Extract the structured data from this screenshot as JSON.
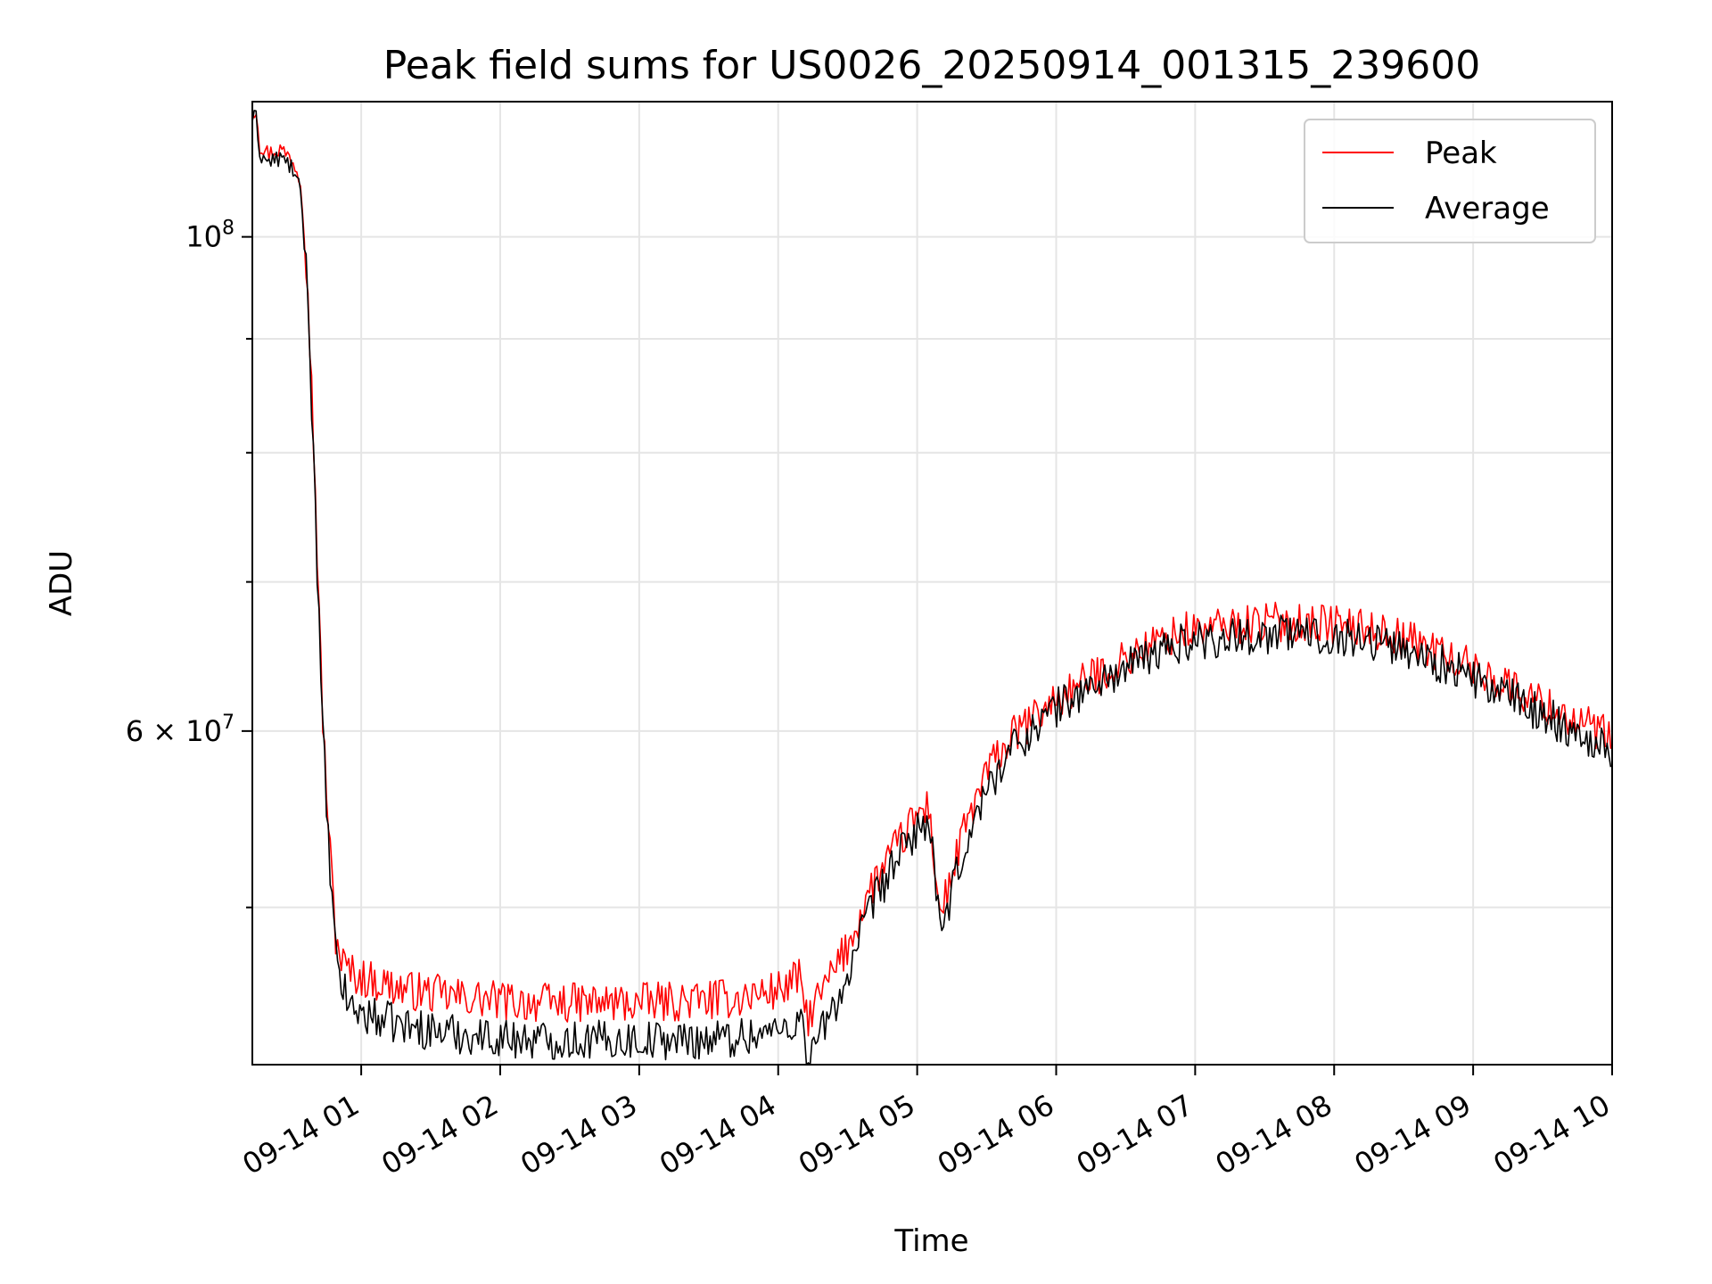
{
  "chart_data": {
    "type": "line",
    "title": "Peak field sums for US0026_20250914_001315_239600",
    "xlabel": "Time",
    "ylabel": "ADU",
    "yscale": "log",
    "grid": true,
    "legend_position": "top-right",
    "xlim": [
      "09-14 00:13",
      "09-14 10:00"
    ],
    "ylim": [
      42500000,
      115000000
    ],
    "x_ticks": [
      "09-14 01",
      "09-14 02",
      "09-14 03",
      "09-14 04",
      "09-14 05",
      "09-14 06",
      "09-14 07",
      "09-14 08",
      "09-14 09",
      "09-14 10"
    ],
    "y_ticks": [
      {
        "value": 100000000,
        "base": "10",
        "exp": "8",
        "prefix": ""
      },
      {
        "value": 60000000,
        "base": "10",
        "exp": "7",
        "prefix": "6 × "
      }
    ],
    "y_minor_ticks": [
      50000000,
      70000000,
      80000000,
      90000000
    ],
    "colors": {
      "peak": "#ff0000",
      "average": "#000000"
    },
    "series": [
      {
        "name": "Peak",
        "color": "#ff0000",
        "x": [
          "09-14 00:13",
          "09-14 00:15",
          "09-14 00:16",
          "09-14 00:20",
          "09-14 00:25",
          "09-14 00:30",
          "09-14 00:34",
          "09-14 00:37",
          "09-14 00:40",
          "09-14 00:43",
          "09-14 00:46",
          "09-14 00:49",
          "09-14 00:52",
          "09-14 00:55",
          "09-14 01:00",
          "09-14 01:10",
          "09-14 01:20",
          "09-14 01:40",
          "09-14 02:00",
          "09-14 02:20",
          "09-14 02:40",
          "09-14 03:00",
          "09-14 03:20",
          "09-14 03:40",
          "09-14 04:00",
          "09-14 04:10",
          "09-14 04:12",
          "09-14 04:20",
          "09-14 04:30",
          "09-14 04:40",
          "09-14 04:50",
          "09-14 05:00",
          "09-14 05:05",
          "09-14 05:10",
          "09-14 05:20",
          "09-14 05:30",
          "09-14 05:40",
          "09-14 06:00",
          "09-14 06:20",
          "09-14 06:40",
          "09-14 06:55",
          "09-14 07:20",
          "09-14 07:40",
          "09-14 08:00",
          "09-14 08:20",
          "09-14 08:40",
          "09-14 09:00",
          "09-14 09:20",
          "09-14 09:40",
          "09-14 10:00"
        ],
        "y": [
          114000000,
          114000000,
          110000000,
          109000000,
          109500000,
          108500000,
          106000000,
          95000000,
          78000000,
          62000000,
          54000000,
          48500000,
          47200000,
          46800000,
          46500000,
          46200000,
          45900000,
          45600000,
          45400000,
          45300000,
          45300000,
          45300000,
          45400000,
          45500000,
          45900000,
          46500000,
          44500000,
          46000000,
          48000000,
          51000000,
          53000000,
          55000000,
          55500000,
          49500000,
          54000000,
          57500000,
          59500000,
          62000000,
          63800000,
          65500000,
          66500000,
          67000000,
          67200000,
          67000000,
          66500000,
          65500000,
          64000000,
          62500000,
          61000000,
          59500000
        ]
      },
      {
        "name": "Average",
        "color": "#000000",
        "x": [
          "09-14 00:13",
          "09-14 00:15",
          "09-14 00:16",
          "09-14 00:20",
          "09-14 00:25",
          "09-14 00:30",
          "09-14 00:34",
          "09-14 00:37",
          "09-14 00:40",
          "09-14 00:43",
          "09-14 00:46",
          "09-14 00:49",
          "09-14 00:52",
          "09-14 00:55",
          "09-14 01:00",
          "09-14 01:10",
          "09-14 01:20",
          "09-14 01:40",
          "09-14 02:00",
          "09-14 02:20",
          "09-14 02:40",
          "09-14 03:00",
          "09-14 03:20",
          "09-14 03:40",
          "09-14 04:00",
          "09-14 04:10",
          "09-14 04:12",
          "09-14 04:20",
          "09-14 04:30",
          "09-14 04:40",
          "09-14 04:50",
          "09-14 05:00",
          "09-14 05:05",
          "09-14 05:10",
          "09-14 05:20",
          "09-14 05:30",
          "09-14 05:40",
          "09-14 06:00",
          "09-14 06:20",
          "09-14 06:40",
          "09-14 06:55",
          "09-14 07:20",
          "09-14 07:40",
          "09-14 08:00",
          "09-14 08:20",
          "09-14 08:40",
          "09-14 09:00",
          "09-14 09:20",
          "09-14 09:40",
          "09-14 10:00"
        ],
        "y": [
          113000000,
          113000000,
          109000000,
          108000000,
          108500000,
          107500000,
          104500000,
          94000000,
          77000000,
          61000000,
          53000000,
          47500000,
          46000000,
          45200000,
          44800000,
          44500000,
          44200000,
          43900000,
          43700000,
          43600000,
          43600000,
          43600000,
          43600000,
          43700000,
          44000000,
          44600000,
          42700000,
          44200000,
          46500000,
          50000000,
          52300000,
          54200000,
          54800000,
          48500000,
          53000000,
          56500000,
          58800000,
          61500000,
          63200000,
          64800000,
          65800000,
          66200000,
          66400000,
          66200000,
          65800000,
          64800000,
          63300000,
          61800000,
          60300000,
          58800000
        ]
      }
    ]
  }
}
